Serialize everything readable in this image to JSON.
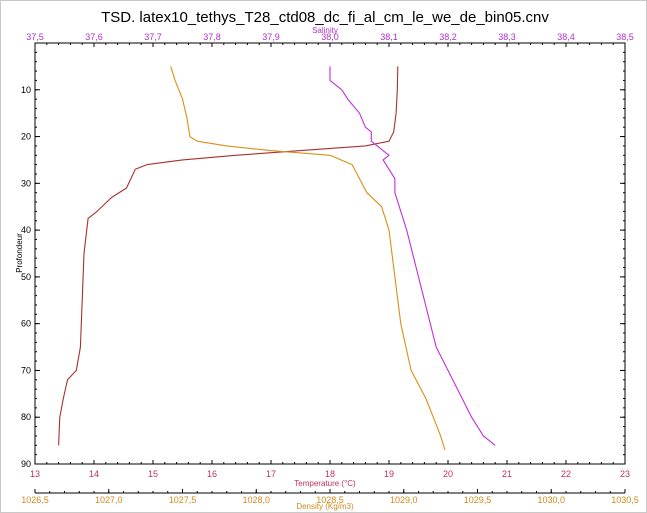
{
  "chart_data": {
    "type": "line",
    "title": "TSD. latex10_tethys_T28_ctd08_dc_fi_al_cm_le_we_de_bin05.cnv",
    "ylabel": "Profondeur",
    "ylim": [
      0,
      90
    ],
    "y_reversed": true,
    "y_ticks": [
      "10",
      "20",
      "30",
      "40",
      "50",
      "60",
      "70",
      "80",
      "90"
    ],
    "axes": {
      "temperature": {
        "label": "Temperature (°C)",
        "position": "bottom",
        "range": [
          13,
          23
        ],
        "ticks": [
          "13",
          "14",
          "15",
          "16",
          "17",
          "18",
          "19",
          "20",
          "21",
          "22",
          "23"
        ],
        "color": "#c0305a"
      },
      "density": {
        "label": "Density (Kg/m3)",
        "position": "bottom-outer",
        "range": [
          1026.5,
          1030.5
        ],
        "ticks": [
          "1026,5",
          "1027,0",
          "1027,5",
          "1028,0",
          "1028,5",
          "1029,0",
          "1029,5",
          "1030,0",
          "1030,5"
        ],
        "color": "#d08a1c"
      },
      "salinity": {
        "label": "Salinity",
        "position": "top",
        "range": [
          37.5,
          38.5
        ],
        "ticks": [
          "37,5",
          "37,6",
          "37,7",
          "37,8",
          "37,9",
          "38,0",
          "38,1",
          "38,2",
          "38,3",
          "38,4",
          "38,5"
        ],
        "color": "#b030c8"
      }
    },
    "series": [
      {
        "key": "temperature",
        "color": "#a83030",
        "points": [
          [
            19.15,
            5
          ],
          [
            19.14,
            10
          ],
          [
            19.12,
            15
          ],
          [
            19.08,
            19
          ],
          [
            19.0,
            21
          ],
          [
            18.6,
            22
          ],
          [
            17.5,
            23
          ],
          [
            16.4,
            24
          ],
          [
            15.5,
            25
          ],
          [
            14.9,
            26
          ],
          [
            14.7,
            27
          ],
          [
            14.55,
            31
          ],
          [
            14.3,
            33
          ],
          [
            14.05,
            36
          ],
          [
            13.9,
            37.5
          ],
          [
            13.83,
            45
          ],
          [
            13.8,
            55
          ],
          [
            13.77,
            65
          ],
          [
            13.7,
            70
          ],
          [
            13.55,
            72
          ],
          [
            13.48,
            76
          ],
          [
            13.42,
            80
          ],
          [
            13.4,
            86
          ]
        ]
      },
      {
        "key": "density",
        "color": "#d89018",
        "points": [
          [
            1027.42,
            5
          ],
          [
            1027.45,
            8
          ],
          [
            1027.5,
            12
          ],
          [
            1027.53,
            16
          ],
          [
            1027.55,
            20
          ],
          [
            1027.6,
            21
          ],
          [
            1027.8,
            22
          ],
          [
            1028.1,
            23
          ],
          [
            1028.5,
            24
          ],
          [
            1028.65,
            26
          ],
          [
            1028.7,
            29
          ],
          [
            1028.75,
            32
          ],
          [
            1028.85,
            35
          ],
          [
            1028.9,
            40
          ],
          [
            1028.94,
            50
          ],
          [
            1028.98,
            60
          ],
          [
            1029.05,
            70
          ],
          [
            1029.15,
            76
          ],
          [
            1029.2,
            80
          ],
          [
            1029.25,
            84
          ],
          [
            1029.28,
            87
          ]
        ]
      },
      {
        "key": "salinity",
        "color": "#c030d8",
        "points": [
          [
            38.0,
            5
          ],
          [
            38.0,
            8
          ],
          [
            38.02,
            10
          ],
          [
            38.03,
            12
          ],
          [
            38.05,
            15
          ],
          [
            38.06,
            18
          ],
          [
            38.07,
            19
          ],
          [
            38.07,
            21
          ],
          [
            38.08,
            22
          ],
          [
            38.1,
            24
          ],
          [
            38.09,
            25
          ],
          [
            38.1,
            27
          ],
          [
            38.11,
            29
          ],
          [
            38.11,
            32
          ],
          [
            38.12,
            36
          ],
          [
            38.13,
            40
          ],
          [
            38.14,
            45
          ],
          [
            38.15,
            50
          ],
          [
            38.16,
            55
          ],
          [
            38.17,
            60
          ],
          [
            38.18,
            65
          ],
          [
            38.2,
            70
          ],
          [
            38.22,
            75
          ],
          [
            38.24,
            80
          ],
          [
            38.26,
            84
          ],
          [
            38.28,
            86
          ]
        ]
      }
    ]
  }
}
